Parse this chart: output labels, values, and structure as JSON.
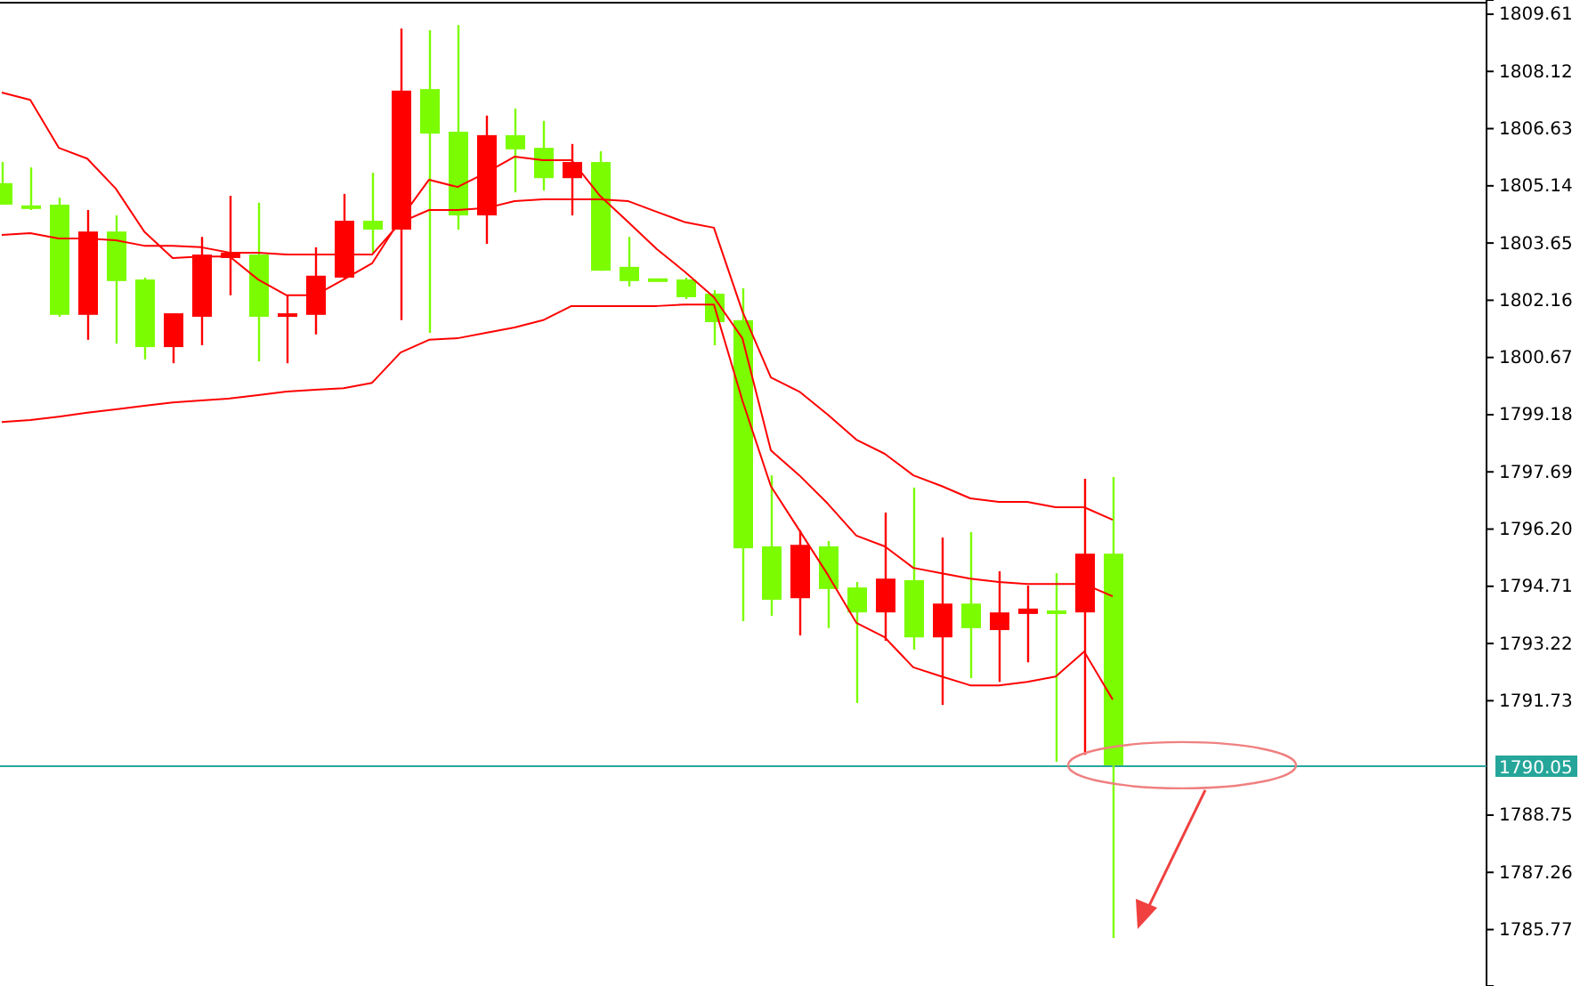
{
  "chart_data": {
    "type": "candlestick",
    "categories": [
      null,
      null,
      null,
      null,
      null,
      null,
      null,
      null,
      null,
      null,
      null,
      null,
      null,
      null,
      null,
      null,
      null,
      null,
      null,
      null,
      null,
      null,
      null,
      null,
      null,
      null,
      null,
      null,
      null,
      null,
      null,
      null,
      null,
      null,
      null,
      null,
      null,
      null,
      null,
      null
    ],
    "ohlc": [
      [
        1805.21,
        1805.76,
        1804.65,
        1804.65
      ],
      [
        1804.63,
        1805.62,
        1804.51,
        1804.63
      ],
      [
        1804.65,
        1804.83,
        1801.73,
        1801.78
      ],
      [
        1801.78,
        1804.51,
        1801.13,
        1803.95
      ],
      [
        1803.95,
        1804.37,
        1801.03,
        1802.66
      ],
      [
        1802.7,
        1802.75,
        1800.62,
        1800.94
      ],
      [
        1800.94,
        1801.82,
        1800.52,
        1801.82
      ],
      [
        1801.73,
        1803.81,
        1800.99,
        1803.35
      ],
      [
        1803.26,
        1804.88,
        1802.29,
        1803.4
      ],
      [
        1803.35,
        1804.7,
        1800.57,
        1801.73
      ],
      [
        1801.73,
        1802.29,
        1800.52,
        1801.82
      ],
      [
        1801.78,
        1803.54,
        1801.27,
        1802.8
      ],
      [
        1802.75,
        1804.93,
        1802.7,
        1804.23
      ],
      [
        1804.23,
        1805.48,
        1803.4,
        1804.0
      ],
      [
        1804.0,
        1809.24,
        1801.64,
        1807.62
      ],
      [
        1807.66,
        1809.19,
        1801.31,
        1806.5
      ],
      [
        1806.55,
        1809.33,
        1804.0,
        1804.37
      ],
      [
        1804.37,
        1806.97,
        1803.63,
        1806.46
      ],
      [
        1806.46,
        1807.15,
        1804.97,
        1806.09
      ],
      [
        1806.13,
        1806.83,
        1805.02,
        1805.34
      ],
      [
        1805.34,
        1806.23,
        1804.37,
        1805.76
      ],
      [
        1805.76,
        1806.04,
        1802.93,
        1802.93
      ],
      [
        1803.03,
        1803.81,
        1802.52,
        1802.66
      ],
      [
        1802.73,
        1802.73,
        1802.73,
        1802.73
      ],
      [
        1802.7,
        1802.75,
        1802.19,
        1802.24
      ],
      [
        1802.33,
        1802.42,
        1800.99,
        1801.59
      ],
      [
        1801.64,
        1802.47,
        1793.8,
        1795.7
      ],
      [
        1795.75,
        1797.6,
        1793.94,
        1794.36
      ],
      [
        1794.4,
        1796.17,
        1793.43,
        1795.79
      ],
      [
        1795.75,
        1795.89,
        1793.62,
        1794.64
      ],
      [
        1794.68,
        1794.82,
        1791.67,
        1794.03
      ],
      [
        1794.03,
        1796.63,
        1793.29,
        1794.91
      ],
      [
        1794.87,
        1797.28,
        1793.06,
        1793.38
      ],
      [
        1793.38,
        1795.98,
        1791.62,
        1794.26
      ],
      [
        1794.26,
        1796.12,
        1792.32,
        1793.62
      ],
      [
        1793.57,
        1795.1,
        1792.22,
        1794.03
      ],
      [
        1793.99,
        1794.73,
        1792.73,
        1794.13
      ],
      [
        1794.08,
        1795.05,
        1790.14,
        1794.08
      ],
      [
        1794.03,
        1797.51,
        1790.32,
        1795.56
      ],
      [
        1795.56,
        1797.56,
        1785.55,
        1790.05
      ]
    ],
    "colors": [
      "#7cfc00",
      "#7cfc00",
      "#7cfc00",
      "#ff0000",
      "#7cfc00",
      "#7cfc00",
      "#ff0000",
      "#ff0000",
      "#ff0000",
      "#7cfc00",
      "#ff0000",
      "#ff0000",
      "#ff0000",
      "#7cfc00",
      "#ff0000",
      "#7cfc00",
      "#7cfc00",
      "#ff0000",
      "#7cfc00",
      "#7cfc00",
      "#ff0000",
      "#7cfc00",
      "#7cfc00",
      "#7cfc00",
      "#7cfc00",
      "#7cfc00",
      "#7cfc00",
      "#7cfc00",
      "#ff0000",
      "#7cfc00",
      "#7cfc00",
      "#ff0000",
      "#7cfc00",
      "#ff0000",
      "#7cfc00",
      "#ff0000",
      "#ff0000",
      "#7cfc00",
      "#ff0000",
      "#7cfc00"
    ],
    "series": [
      {
        "type": "line",
        "color": "#ff0000",
        "values": [
          1807.57,
          1807.38,
          1806.13,
          1805.85,
          1805.07,
          1803.95,
          1803.26,
          1803.3,
          1803.3,
          1802.7,
          1802.29,
          1802.29,
          1802.7,
          1803.12,
          1804.28,
          1805.3,
          1805.11,
          1805.48,
          1805.9,
          1805.81,
          1805.81,
          1804.88,
          1804.19,
          1803.49,
          1802.89,
          1802.24,
          1801.17,
          1798.25,
          1797.6,
          1796.86,
          1796.03,
          1795.75,
          1795.19,
          1795.05,
          1794.91,
          1794.82,
          1794.77,
          1794.77,
          1794.77,
          1794.45
        ]
      },
      {
        "type": "line",
        "color": "#ff0000",
        "values": [
          1803.86,
          1803.91,
          1803.77,
          1803.77,
          1803.72,
          1803.58,
          1803.58,
          1803.54,
          1803.4,
          1803.4,
          1803.35,
          1803.35,
          1803.35,
          1803.35,
          1804.19,
          1804.51,
          1804.51,
          1804.56,
          1804.74,
          1804.79,
          1804.79,
          1804.79,
          1804.74,
          1804.46,
          1804.19,
          1804.05,
          1801.87,
          1800.15,
          1799.78,
          1799.18,
          1798.53,
          1798.16,
          1797.6,
          1797.32,
          1797.0,
          1796.91,
          1796.91,
          1796.77,
          1796.77,
          1796.44
        ]
      },
      {
        "type": "line",
        "color": "#ff0000",
        "values": [
          1798.99,
          1799.04,
          1799.13,
          1799.23,
          1799.32,
          1799.41,
          1799.5,
          1799.55,
          1799.6,
          1799.69,
          1799.78,
          1799.83,
          1799.87,
          1800.01,
          1800.8,
          1801.13,
          1801.17,
          1801.31,
          1801.45,
          1801.64,
          1802.01,
          1802.01,
          1802.01,
          1802.01,
          1802.05,
          1802.05,
          1799.55,
          1797.32,
          1796.17,
          1795.01,
          1793.76,
          1793.38,
          1792.6,
          1792.36,
          1792.13,
          1792.13,
          1792.22,
          1792.36,
          1793.01,
          1791.76
        ]
      }
    ],
    "ylim": [
      1784.3,
      1809.98
    ],
    "yticks": [
      1809.61,
      1808.12,
      1806.63,
      1805.14,
      1803.65,
      1802.16,
      1800.67,
      1799.18,
      1797.69,
      {
        "value": 1796.2,
        "label": "1796.20"
      },
      1794.71,
      1793.22,
      1791.73,
      1788.75,
      1787.26,
      1785.77
    ],
    "ref_lines": [
      {
        "axis": "y",
        "value": 1790.05,
        "label": "1790.05",
        "color": "#26a69a"
      }
    ],
    "tick_labels": "y"
  }
}
